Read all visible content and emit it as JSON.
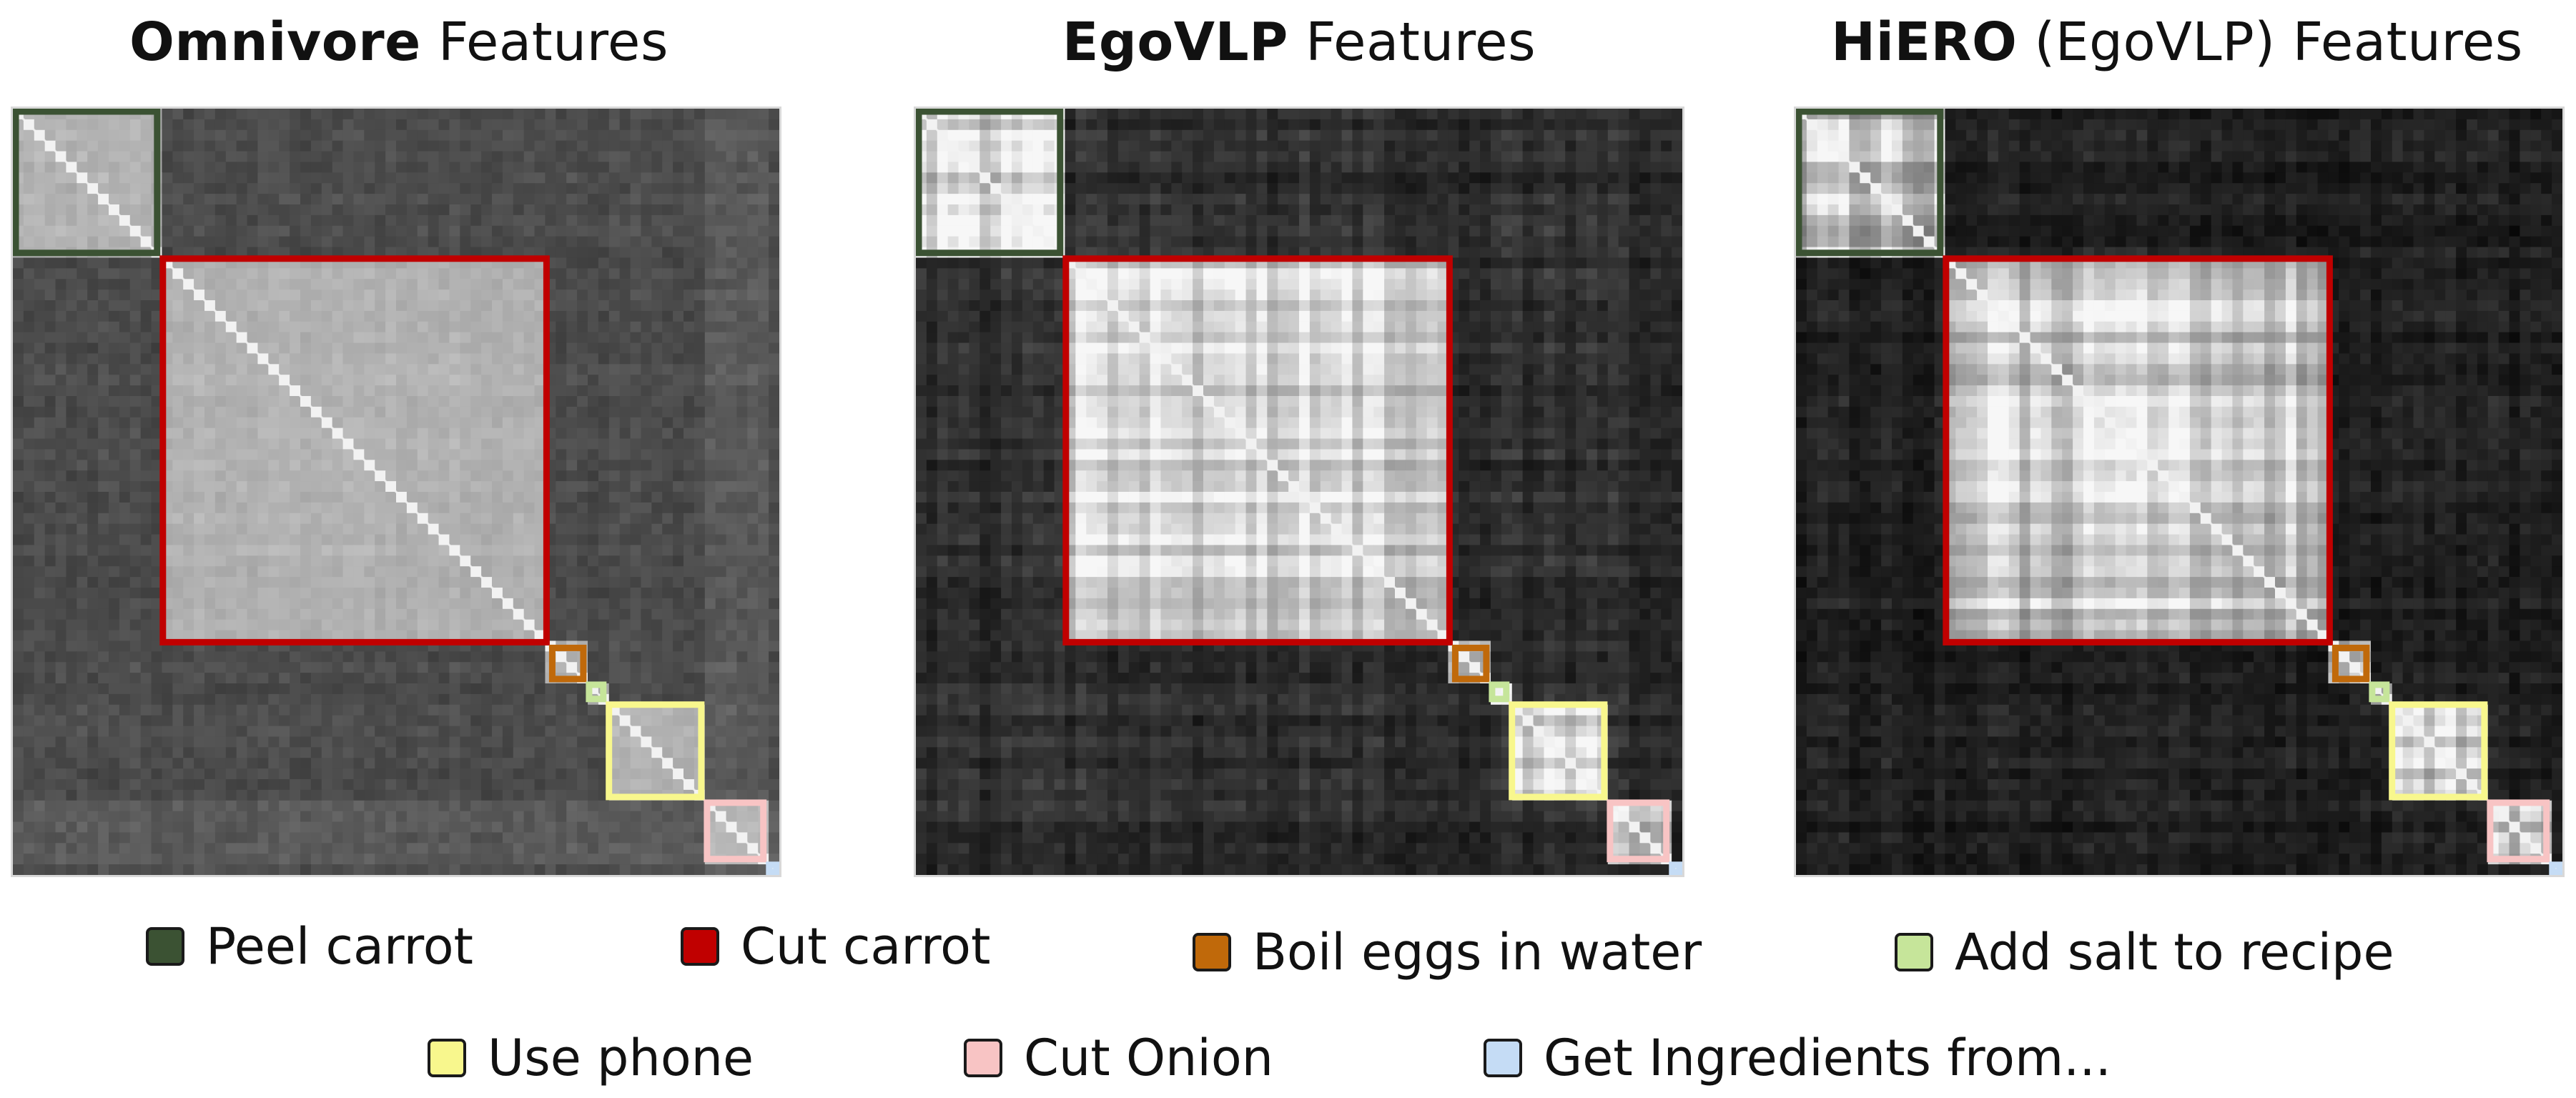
{
  "panels": [
    {
      "id": "omnivore",
      "bold": "Omnivore",
      "paren": "",
      "rest": "Features",
      "base": 0.28,
      "contrast": 0.3,
      "grid": 0.05
    },
    {
      "id": "egovlp",
      "bold": "EgoVLP",
      "paren": "",
      "rest": "Features",
      "base": 0.16,
      "contrast": 0.55,
      "grid": 0.24
    },
    {
      "id": "hiero",
      "bold": "HiERO",
      "paren": "(EgoVLP)",
      "rest": "Features",
      "base": 0.1,
      "contrast": 0.52,
      "grid": 0.3
    }
  ],
  "segments": [
    {
      "label": "Peel carrot",
      "color": "#3b5233",
      "start": 0.0,
      "end": 0.192
    },
    {
      "label": "Cut carrot",
      "color": "#c00000",
      "start": 0.192,
      "end": 0.7
    },
    {
      "label": "Boil eggs in water",
      "color": "#c0690a",
      "start": 0.7,
      "end": 0.748
    },
    {
      "label": "Add salt to recipe",
      "color": "#c6e59a",
      "start": 0.748,
      "end": 0.774
    },
    {
      "label": "Use phone",
      "color": "#f8f78d",
      "start": 0.774,
      "end": 0.902
    },
    {
      "label": "Cut Onion",
      "color": "#f8c4c4",
      "start": 0.902,
      "end": 0.983
    },
    {
      "label": "Get Ingredients from...",
      "color": "#c5dcf5",
      "start": 0.983,
      "end": 1.0
    }
  ]
}
